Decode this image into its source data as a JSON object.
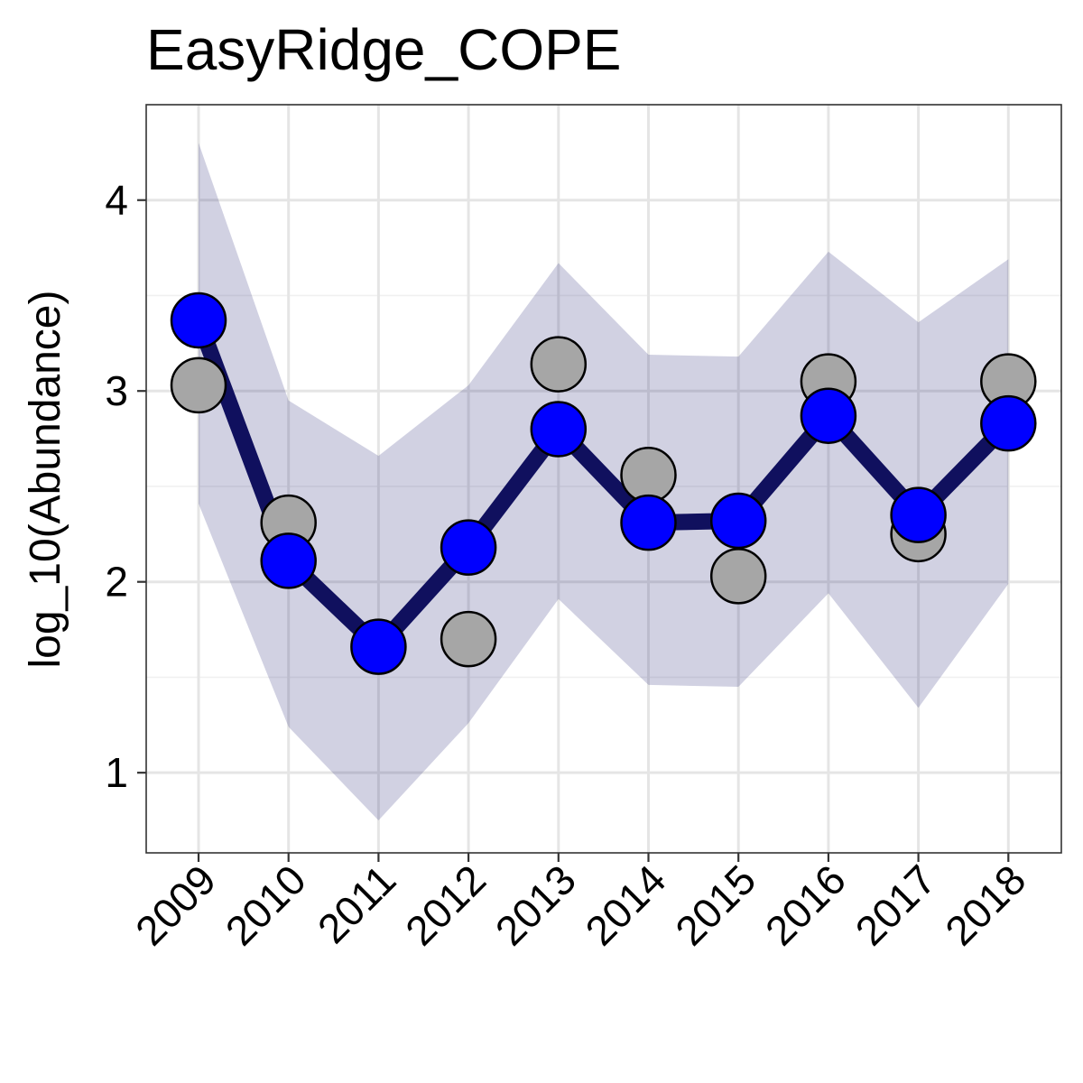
{
  "chart_data": {
    "type": "line",
    "title": "EasyRidge_COPE",
    "xlabel": "",
    "ylabel": "log_10(Abundance)",
    "x": [
      "2009",
      "2010",
      "2011",
      "2012",
      "2013",
      "2014",
      "2015",
      "2016",
      "2017",
      "2018"
    ],
    "ylim": [
      0.58,
      4.5
    ],
    "yticks": [
      1,
      2,
      3,
      4
    ],
    "ytick_labels": [
      "1",
      "2",
      "3",
      "4"
    ],
    "grid": true,
    "legend": "none",
    "series": [
      {
        "kind": "ribbon",
        "lower": [
          2.41,
          1.24,
          0.75,
          1.26,
          1.91,
          1.46,
          1.45,
          1.94,
          1.34,
          1.99
        ],
        "upper": [
          4.3,
          2.95,
          2.66,
          3.03,
          3.67,
          3.19,
          3.18,
          3.73,
          3.36,
          3.69
        ],
        "color": "#1a1a6e",
        "opacity": 0.2
      },
      {
        "kind": "observed",
        "values": [
          3.03,
          2.31,
          null,
          1.7,
          3.14,
          2.56,
          2.03,
          3.05,
          2.25,
          3.05
        ],
        "color": "#a6a6a6"
      },
      {
        "kind": "estimate",
        "values": [
          3.37,
          2.11,
          1.66,
          2.18,
          2.8,
          2.31,
          2.32,
          2.87,
          2.35,
          2.83
        ],
        "color": "#0000ff",
        "line_color": "#10105e"
      }
    ]
  }
}
